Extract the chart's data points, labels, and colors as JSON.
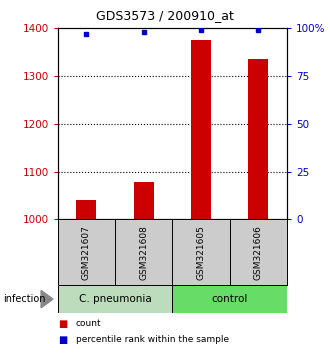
{
  "title": "GDS3573 / 200910_at",
  "samples": [
    "GSM321607",
    "GSM321608",
    "GSM321605",
    "GSM321606"
  ],
  "counts": [
    1040,
    1078,
    1375,
    1335
  ],
  "percentiles": [
    97,
    98,
    99,
    99
  ],
  "ylim_left": [
    1000,
    1400
  ],
  "ylim_right": [
    0,
    100
  ],
  "yticks_left": [
    1000,
    1100,
    1200,
    1300,
    1400
  ],
  "yticks_right": [
    0,
    25,
    50,
    75,
    100
  ],
  "ytick_labels_right": [
    "0",
    "25",
    "50",
    "75",
    "100%"
  ],
  "groups": [
    {
      "label": "C. pneumonia",
      "indices": [
        0,
        1
      ],
      "color": "#bbddbb"
    },
    {
      "label": "control",
      "indices": [
        2,
        3
      ],
      "color": "#66dd66"
    }
  ],
  "bar_color": "#cc0000",
  "dot_color": "#0000cc",
  "bar_width": 0.35,
  "background_color": "#ffffff",
  "sample_box_color": "#cccccc",
  "infection_label": "infection",
  "legend_items": [
    {
      "color": "#cc0000",
      "label": "count"
    },
    {
      "color": "#0000cc",
      "label": "percentile rank within the sample"
    }
  ]
}
